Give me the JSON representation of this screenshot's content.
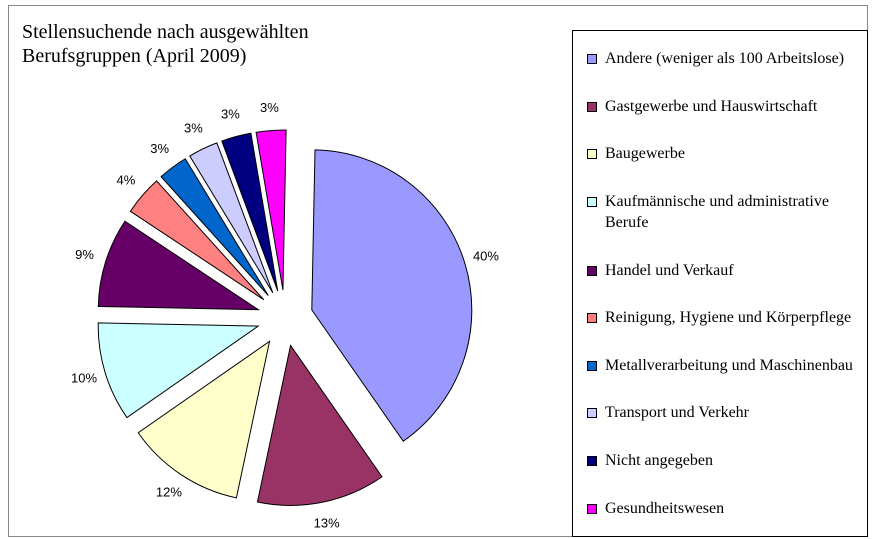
{
  "chart_data": {
    "type": "pie",
    "title": "Stellensuchende nach ausgewählten Berufsgruppen (April 2009)",
    "categories": [
      "Andere (weniger als 100 Arbeitslose)",
      "Gastgewerbe und Hauswirtschaft",
      "Baugewerbe",
      "Kaufmännische und administrative Berufe",
      "Handel und Verkauf",
      "Reinigung, Hygiene und Körperpflege",
      "Metallverarbeitung und Maschinenbau",
      "Transport und Verkehr",
      "Nicht angegeben",
      "Gesundheitswesen"
    ],
    "values": [
      40,
      13,
      12,
      10,
      9,
      4,
      3,
      3,
      3,
      3
    ],
    "value_labels": [
      "40%",
      "13%",
      "12%",
      "10%",
      "9%",
      "4%",
      "3%",
      "3%",
      "3%",
      "3%"
    ],
    "colors": [
      "#9999ff",
      "#993366",
      "#ffffcc",
      "#ccffff",
      "#660066",
      "#ff8080",
      "#0066cc",
      "#ccccff",
      "#000080",
      "#ff00ff"
    ],
    "legend": "right"
  }
}
